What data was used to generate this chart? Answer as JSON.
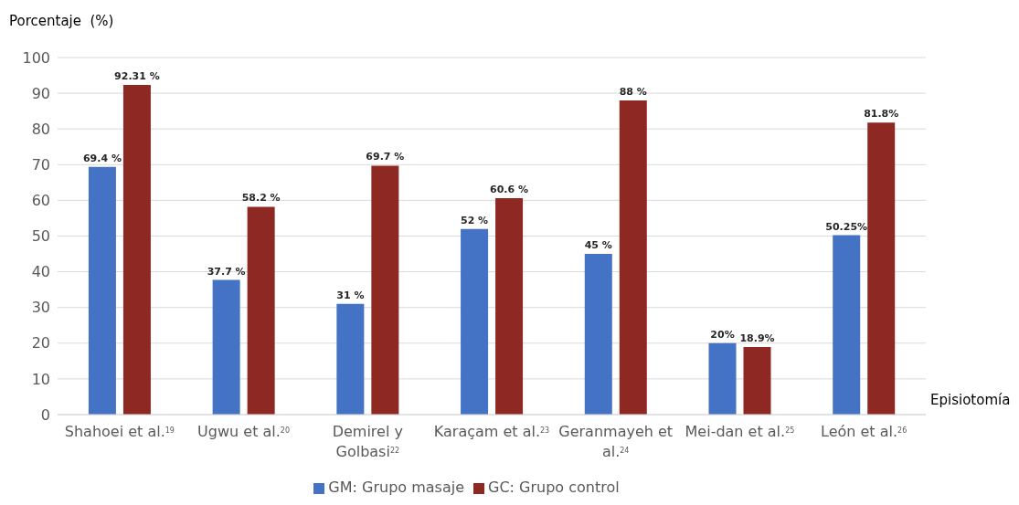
{
  "chart_data": {
    "type": "bar",
    "ylabel": "Porcentaje  (%)",
    "xlabel": "Episiotomía",
    "categories": [
      "Shahoei et al.$^{19}$",
      "Ugwu et al.$^{20}$",
      "Demirel y Golbasi$^{22}$",
      "Karaçam et al.$^{23}$",
      "Geranmayeh et al.$^{24}$",
      "Mei-dan et al.$^{25}$",
      "León et al.$^{26}$"
    ],
    "series": [
      {
        "name": "GM: Grupo masaje",
        "color": "#4472c4",
        "values": [
          69.4,
          37.7,
          31,
          52,
          45,
          20,
          50.25
        ],
        "value_labels": [
          "69.4 %",
          "37.7 %",
          "31 %",
          "52 %",
          "45 %",
          "20%",
          "50.25%"
        ]
      },
      {
        "name": "GC: Grupo control",
        "color": "#8e2822",
        "values": [
          92.31,
          58.2,
          69.7,
          60.6,
          88,
          18.9,
          81.8
        ],
        "value_labels": [
          "92.31 %",
          "58.2 %",
          "69.7 %",
          "60.6 %",
          "88 %",
          "18.9%",
          "81.8%"
        ]
      }
    ],
    "ylim": [
      0,
      100
    ],
    "yticks": [
      0,
      10,
      20,
      30,
      40,
      50,
      60,
      70,
      80,
      90,
      100
    ],
    "grid": "y",
    "legend": "bottom"
  }
}
